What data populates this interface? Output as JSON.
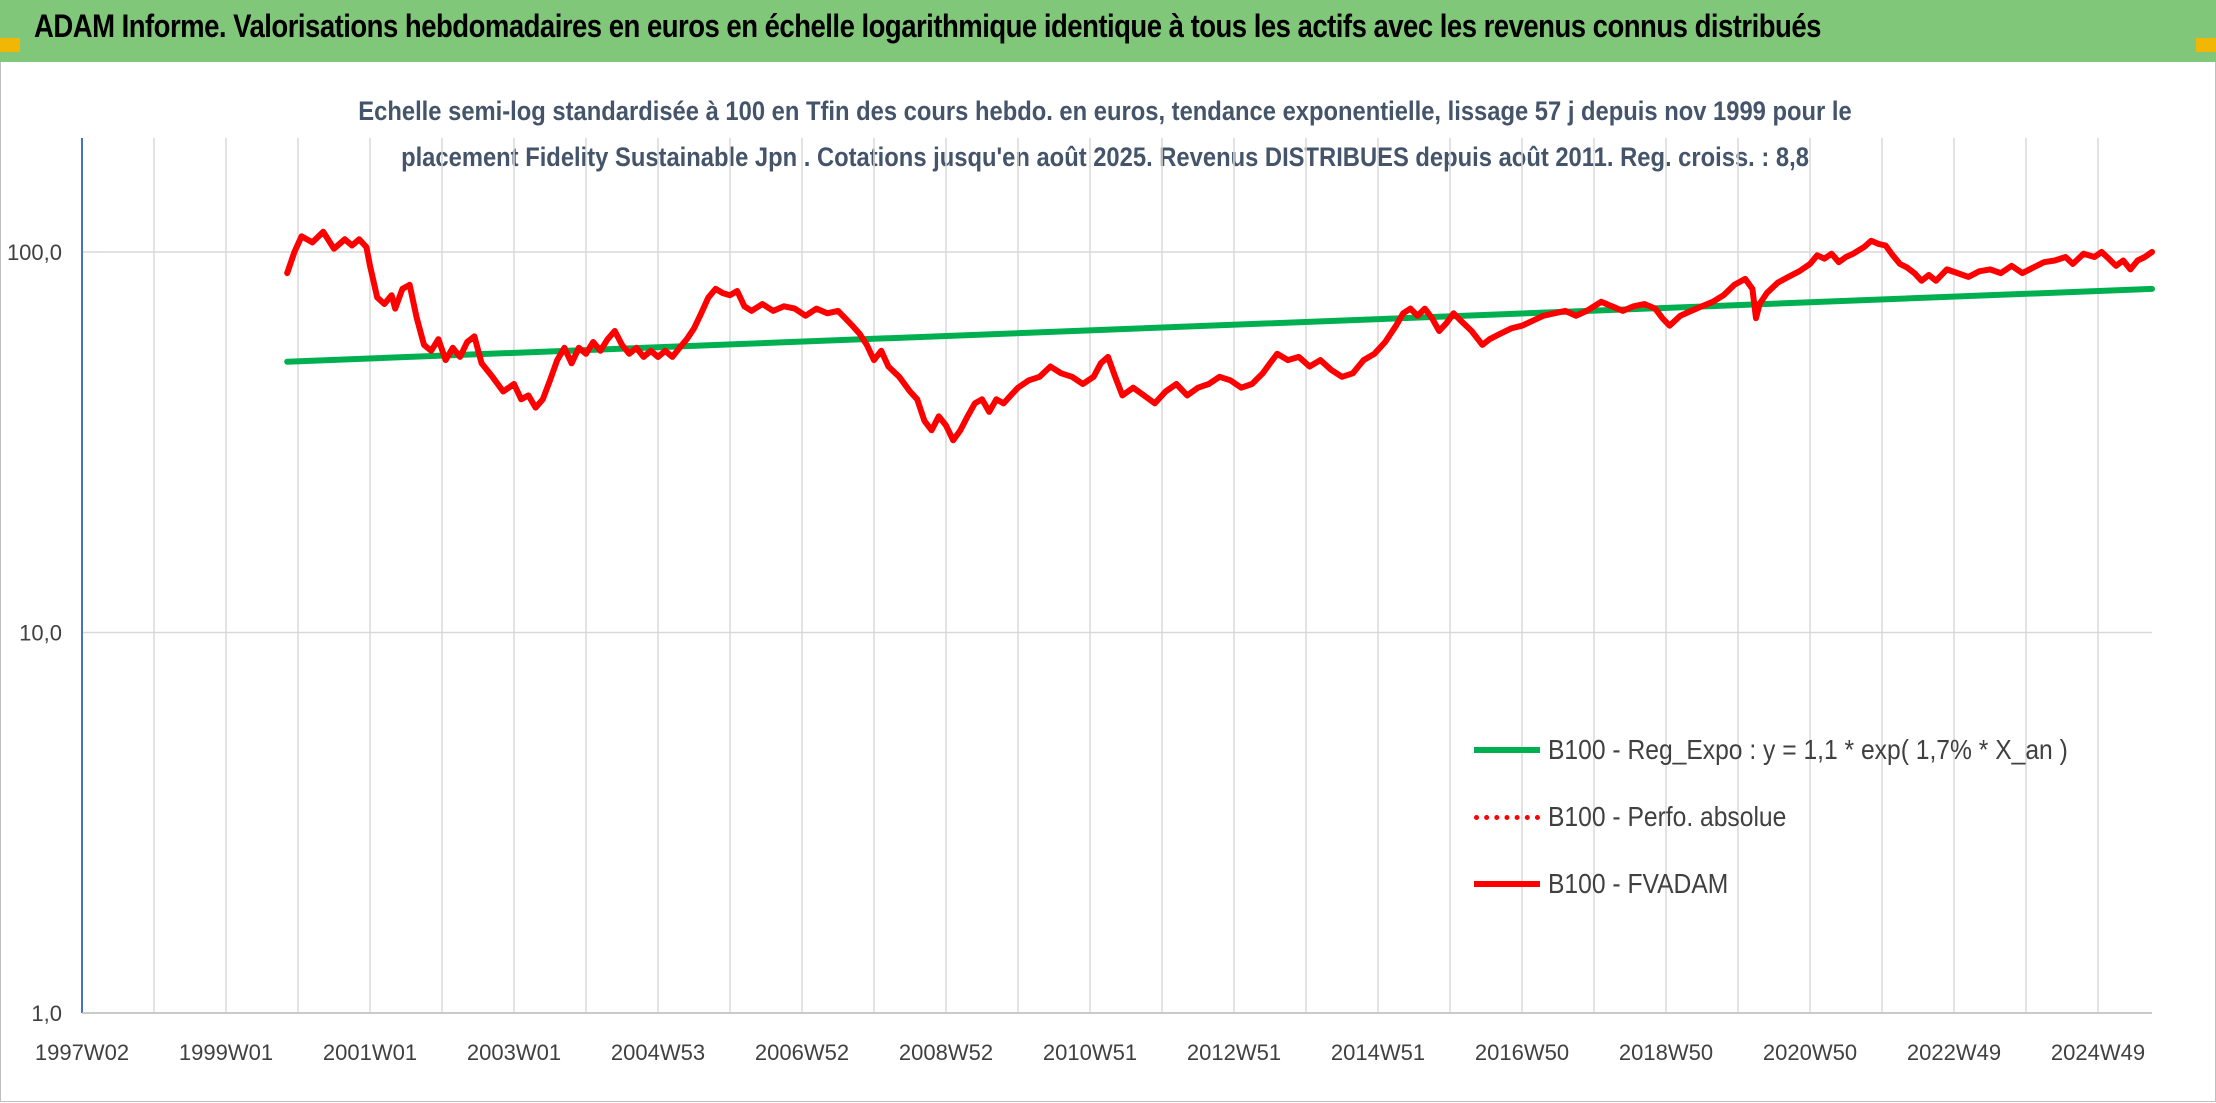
{
  "header": {
    "title": "ADAM Informe. Valorisations hebdomadaires en euros en échelle logarithmique identique à tous les actifs avec les revenus connus distribués"
  },
  "chart_data": {
    "type": "line",
    "title_line1": "Echelle semi-log standardisée à 100 en Tfin des cours hebdo. en euros, tendance exponentielle, lissage 57 j depuis nov 1999 pour le",
    "title_line2": "placement Fidelity Sustainable Jpn . Cotations jusqu'en août 2025. Revenus DISTRIBUES depuis août 2011. Reg. croiss. : 8,8",
    "y_scale": "log",
    "ylim": [
      1,
      200
    ],
    "y_ticks": [
      {
        "value": 1,
        "label": "1,0"
      },
      {
        "value": 10,
        "label": "10,0"
      },
      {
        "value": 100,
        "label": "100,0"
      }
    ],
    "xlim": [
      1997.0,
      2025.75
    ],
    "x_ticks": [
      {
        "value": 1997.0,
        "label": "1997W02"
      },
      {
        "value": 1999.0,
        "label": "1999W01"
      },
      {
        "value": 2001.0,
        "label": "2001W01"
      },
      {
        "value": 2003.0,
        "label": "2003W01"
      },
      {
        "value": 2005.0,
        "label": "2004W53"
      },
      {
        "value": 2007.0,
        "label": "2006W52"
      },
      {
        "value": 2009.0,
        "label": "2008W52"
      },
      {
        "value": 2011.0,
        "label": "2010W51"
      },
      {
        "value": 2013.0,
        "label": "2012W51"
      },
      {
        "value": 2015.0,
        "label": "2014W51"
      },
      {
        "value": 2017.0,
        "label": "2016W50"
      },
      {
        "value": 2019.0,
        "label": "2018W50"
      },
      {
        "value": 2021.0,
        "label": "2020W50"
      },
      {
        "value": 2023.0,
        "label": "2022W49"
      },
      {
        "value": 2025.0,
        "label": "2024W49"
      }
    ],
    "grid": "vertical-and-horizontal",
    "legend_position": "bottom-right",
    "series": [
      {
        "name": "B100 - Reg_Expo : y = 1,1 * exp( 1,7% *  X_an )",
        "color": "#00b050",
        "style": "solid",
        "points": [
          [
            1999.85,
            51.5
          ],
          [
            2025.75,
            80.0
          ]
        ]
      },
      {
        "name": "B100 - Perfo. absolue",
        "color": "#ff0000",
        "style": "dotted",
        "points": []
      },
      {
        "name": "B100 - FVADAM",
        "color": "#ff0000",
        "style": "solid",
        "points": [
          [
            1999.85,
            88
          ],
          [
            1999.95,
            100
          ],
          [
            2000.05,
            110
          ],
          [
            2000.2,
            106
          ],
          [
            2000.35,
            113
          ],
          [
            2000.5,
            102
          ],
          [
            2000.65,
            108
          ],
          [
            2000.75,
            104
          ],
          [
            2000.85,
            108
          ],
          [
            2000.95,
            103
          ],
          [
            2001.0,
            92
          ],
          [
            2001.1,
            76
          ],
          [
            2001.2,
            73
          ],
          [
            2001.3,
            77
          ],
          [
            2001.35,
            71
          ],
          [
            2001.45,
            80
          ],
          [
            2001.55,
            82
          ],
          [
            2001.65,
            67
          ],
          [
            2001.75,
            57
          ],
          [
            2001.85,
            55
          ],
          [
            2001.95,
            59
          ],
          [
            2002.05,
            52
          ],
          [
            2002.15,
            56
          ],
          [
            2002.25,
            53
          ],
          [
            2002.35,
            58
          ],
          [
            2002.45,
            60
          ],
          [
            2002.55,
            51
          ],
          [
            2002.7,
            47
          ],
          [
            2002.85,
            43
          ],
          [
            2003.0,
            45
          ],
          [
            2003.1,
            41
          ],
          [
            2003.2,
            42
          ],
          [
            2003.3,
            39
          ],
          [
            2003.4,
            41
          ],
          [
            2003.5,
            46
          ],
          [
            2003.6,
            52
          ],
          [
            2003.7,
            56
          ],
          [
            2003.8,
            51
          ],
          [
            2003.9,
            56
          ],
          [
            2004.0,
            54
          ],
          [
            2004.1,
            58
          ],
          [
            2004.2,
            55
          ],
          [
            2004.3,
            59
          ],
          [
            2004.4,
            62
          ],
          [
            2004.5,
            57
          ],
          [
            2004.6,
            54
          ],
          [
            2004.7,
            56
          ],
          [
            2004.8,
            53
          ],
          [
            2004.9,
            55
          ],
          [
            2005.0,
            53
          ],
          [
            2005.1,
            55
          ],
          [
            2005.2,
            53
          ],
          [
            2005.3,
            56
          ],
          [
            2005.4,
            59
          ],
          [
            2005.5,
            63
          ],
          [
            2005.6,
            69
          ],
          [
            2005.7,
            76
          ],
          [
            2005.8,
            80
          ],
          [
            2005.9,
            78
          ],
          [
            2006.0,
            77
          ],
          [
            2006.1,
            79
          ],
          [
            2006.2,
            72
          ],
          [
            2006.3,
            70
          ],
          [
            2006.45,
            73
          ],
          [
            2006.6,
            70
          ],
          [
            2006.75,
            72
          ],
          [
            2006.9,
            71
          ],
          [
            2007.05,
            68
          ],
          [
            2007.2,
            71
          ],
          [
            2007.35,
            69
          ],
          [
            2007.5,
            70
          ],
          [
            2007.6,
            67
          ],
          [
            2007.7,
            64
          ],
          [
            2007.8,
            61
          ],
          [
            2007.9,
            57
          ],
          [
            2008.0,
            52
          ],
          [
            2008.1,
            55
          ],
          [
            2008.2,
            50
          ],
          [
            2008.35,
            47
          ],
          [
            2008.5,
            43
          ],
          [
            2008.6,
            41
          ],
          [
            2008.7,
            36
          ],
          [
            2008.8,
            34
          ],
          [
            2008.9,
            37
          ],
          [
            2009.0,
            35
          ],
          [
            2009.1,
            32
          ],
          [
            2009.2,
            34
          ],
          [
            2009.3,
            37
          ],
          [
            2009.4,
            40
          ],
          [
            2009.5,
            41
          ],
          [
            2009.6,
            38
          ],
          [
            2009.7,
            41
          ],
          [
            2009.8,
            40
          ],
          [
            2009.9,
            42
          ],
          [
            2010.0,
            44
          ],
          [
            2010.15,
            46
          ],
          [
            2010.3,
            47
          ],
          [
            2010.45,
            50
          ],
          [
            2010.6,
            48
          ],
          [
            2010.75,
            47
          ],
          [
            2010.9,
            45
          ],
          [
            2011.05,
            47
          ],
          [
            2011.15,
            51
          ],
          [
            2011.25,
            53
          ],
          [
            2011.35,
            47
          ],
          [
            2011.45,
            42
          ],
          [
            2011.6,
            44
          ],
          [
            2011.75,
            42
          ],
          [
            2011.9,
            40
          ],
          [
            2012.05,
            43
          ],
          [
            2012.2,
            45
          ],
          [
            2012.35,
            42
          ],
          [
            2012.5,
            44
          ],
          [
            2012.65,
            45
          ],
          [
            2012.8,
            47
          ],
          [
            2012.95,
            46
          ],
          [
            2013.1,
            44
          ],
          [
            2013.25,
            45
          ],
          [
            2013.4,
            48
          ],
          [
            2013.5,
            51
          ],
          [
            2013.6,
            54
          ],
          [
            2013.75,
            52
          ],
          [
            2013.9,
            53
          ],
          [
            2014.05,
            50
          ],
          [
            2014.2,
            52
          ],
          [
            2014.35,
            49
          ],
          [
            2014.5,
            47
          ],
          [
            2014.65,
            48
          ],
          [
            2014.8,
            52
          ],
          [
            2014.95,
            54
          ],
          [
            2015.1,
            58
          ],
          [
            2015.25,
            64
          ],
          [
            2015.35,
            69
          ],
          [
            2015.45,
            71
          ],
          [
            2015.55,
            68
          ],
          [
            2015.65,
            71
          ],
          [
            2015.75,
            67
          ],
          [
            2015.85,
            62
          ],
          [
            2015.95,
            65
          ],
          [
            2016.05,
            69
          ],
          [
            2016.15,
            66
          ],
          [
            2016.3,
            62
          ],
          [
            2016.45,
            57
          ],
          [
            2016.55,
            59
          ],
          [
            2016.7,
            61
          ],
          [
            2016.85,
            63
          ],
          [
            2017.0,
            64
          ],
          [
            2017.15,
            66
          ],
          [
            2017.3,
            68
          ],
          [
            2017.45,
            69
          ],
          [
            2017.6,
            70
          ],
          [
            2017.75,
            68
          ],
          [
            2017.9,
            70
          ],
          [
            2018.0,
            72
          ],
          [
            2018.1,
            74
          ],
          [
            2018.25,
            72
          ],
          [
            2018.4,
            70
          ],
          [
            2018.55,
            72
          ],
          [
            2018.7,
            73
          ],
          [
            2018.85,
            71
          ],
          [
            2018.95,
            67
          ],
          [
            2019.05,
            64
          ],
          [
            2019.2,
            68
          ],
          [
            2019.35,
            70
          ],
          [
            2019.5,
            72
          ],
          [
            2019.65,
            74
          ],
          [
            2019.8,
            77
          ],
          [
            2019.95,
            82
          ],
          [
            2020.1,
            85
          ],
          [
            2020.2,
            80
          ],
          [
            2020.25,
            67
          ],
          [
            2020.3,
            73
          ],
          [
            2020.4,
            78
          ],
          [
            2020.55,
            83
          ],
          [
            2020.7,
            86
          ],
          [
            2020.85,
            89
          ],
          [
            2021.0,
            93
          ],
          [
            2021.1,
            98
          ],
          [
            2021.2,
            96
          ],
          [
            2021.3,
            99
          ],
          [
            2021.4,
            94
          ],
          [
            2021.5,
            97
          ],
          [
            2021.6,
            99
          ],
          [
            2021.75,
            103
          ],
          [
            2021.85,
            107
          ],
          [
            2021.95,
            105
          ],
          [
            2022.05,
            104
          ],
          [
            2022.15,
            98
          ],
          [
            2022.25,
            93
          ],
          [
            2022.35,
            91
          ],
          [
            2022.45,
            88
          ],
          [
            2022.55,
            84
          ],
          [
            2022.65,
            87
          ],
          [
            2022.75,
            84
          ],
          [
            2022.9,
            90
          ],
          [
            2023.05,
            88
          ],
          [
            2023.2,
            86
          ],
          [
            2023.35,
            89
          ],
          [
            2023.5,
            90
          ],
          [
            2023.65,
            88
          ],
          [
            2023.8,
            92
          ],
          [
            2023.95,
            88
          ],
          [
            2024.1,
            91
          ],
          [
            2024.25,
            94
          ],
          [
            2024.4,
            95
          ],
          [
            2024.55,
            97
          ],
          [
            2024.65,
            93
          ],
          [
            2024.8,
            99
          ],
          [
            2024.95,
            97
          ],
          [
            2025.05,
            100
          ],
          [
            2025.15,
            96
          ],
          [
            2025.25,
            92
          ],
          [
            2025.35,
            95
          ],
          [
            2025.45,
            90
          ],
          [
            2025.55,
            95
          ],
          [
            2025.65,
            97
          ],
          [
            2025.75,
            100
          ]
        ]
      }
    ]
  }
}
